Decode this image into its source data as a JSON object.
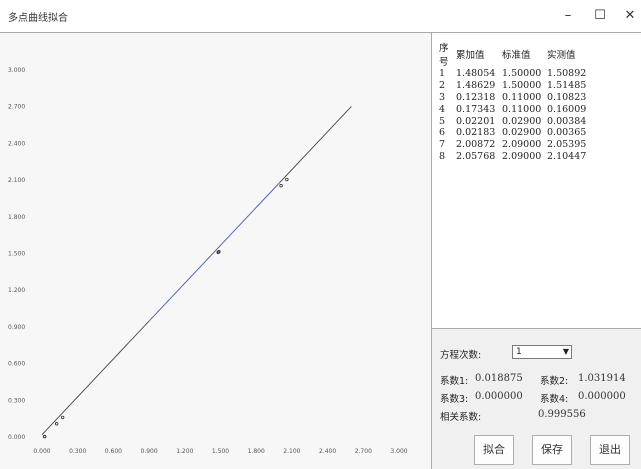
{
  "window": {
    "title": "多点曲线拟合",
    "minimize_glyph": "–",
    "maximize_glyph": "☐",
    "close_glyph": "✕"
  },
  "table": {
    "headers": [
      "序号",
      "累加值",
      "标准值",
      "实测值"
    ],
    "rows": [
      [
        "1",
        "1.48054",
        "1.50000",
        "1.50892"
      ],
      [
        "2",
        "1.48629",
        "1.50000",
        "1.51485"
      ],
      [
        "3",
        "0.12318",
        "0.11000",
        "0.10823"
      ],
      [
        "4",
        "0.17343",
        "0.11000",
        "0.16009"
      ],
      [
        "5",
        "0.02201",
        "0.02900",
        "0.00384"
      ],
      [
        "6",
        "0.02183",
        "0.02900",
        "0.00365"
      ],
      [
        "7",
        "2.00872",
        "2.09000",
        "2.05395"
      ],
      [
        "8",
        "2.05768",
        "2.09000",
        "2.10447"
      ]
    ]
  },
  "controls": {
    "order_label": "方程次数:",
    "order_value": "1",
    "coef1_label": "系数1:",
    "coef1_value": "0.018875",
    "coef2_label": "系数2:",
    "coef2_value": "1.031914",
    "coef3_label": "系数3:",
    "coef3_value": "0.000000",
    "coef4_label": "系数4:",
    "coef4_value": "0.000000",
    "corr_label": "相关系数:",
    "corr_value": "0.999556"
  },
  "buttons": {
    "fit": "拟合",
    "save": "保存",
    "exit": "退出"
  },
  "chart_data": {
    "type": "scatter",
    "x_ticks": [
      "0.000",
      "0.300",
      "0.600",
      "0.900",
      "1.200",
      "1.500",
      "1.800",
      "2.100",
      "2.400",
      "2.700",
      "3.000"
    ],
    "y_ticks": [
      "0.000",
      "0.300",
      "0.600",
      "0.900",
      "1.200",
      "1.500",
      "1.800",
      "2.100",
      "2.400",
      "2.700",
      "3.000"
    ],
    "xlim": [
      0,
      3.0
    ],
    "ylim": [
      0,
      3.0
    ],
    "points_x": [
      1.48054,
      1.48629,
      0.12318,
      0.17343,
      0.02201,
      0.02183,
      2.00872,
      2.05768
    ],
    "points_y": [
      1.50892,
      1.51485,
      0.10823,
      0.16009,
      0.00384,
      0.00365,
      2.05395,
      2.10447
    ],
    "fit_line": {
      "intercept": 0.018875,
      "slope": 1.031914,
      "x_range": [
        0,
        2.6
      ]
    },
    "grid": false
  }
}
